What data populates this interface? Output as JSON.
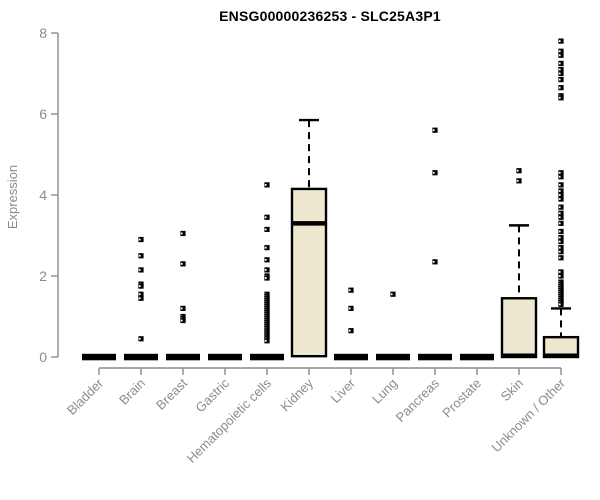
{
  "chart_data": {
    "type": "boxplot",
    "title": "ENSG00000236253 - SLC25A3P1",
    "ylabel": "Expression",
    "xlabel": "",
    "ylim": [
      0,
      8
    ],
    "yticks": [
      0,
      2,
      4,
      6,
      8
    ],
    "grid": false,
    "legend": "none",
    "colors": {
      "box_fill": "#EDE8CF",
      "box_border": "#000000",
      "median": "#000000",
      "whisker": "#000000",
      "outlier": "#000000",
      "axis": "#8c8c8c",
      "tick_label": "#8c8c8c",
      "title": "#000000",
      "background": "#ffffff"
    },
    "categories": [
      {
        "label": "Bladder",
        "q1": 0,
        "median": 0,
        "q3": 0,
        "whisker_low": 0,
        "whisker_high": 0,
        "outliers": []
      },
      {
        "label": "Brain",
        "q1": 0,
        "median": 0,
        "q3": 0,
        "whisker_low": 0,
        "whisker_high": 0,
        "outliers": [
          2.9,
          2.5,
          2.15,
          1.8,
          1.75,
          1.55,
          1.45,
          0.45
        ]
      },
      {
        "label": "Breast",
        "q1": 0,
        "median": 0,
        "q3": 0,
        "whisker_low": 0,
        "whisker_high": 0,
        "outliers": [
          3.05,
          2.3,
          1.2,
          1.0,
          0.95,
          0.9
        ]
      },
      {
        "label": "Gastric",
        "q1": 0,
        "median": 0,
        "q3": 0,
        "whisker_low": 0,
        "whisker_high": 0,
        "outliers": []
      },
      {
        "label": "Hematopoietic cells",
        "q1": 0,
        "median": 0,
        "q3": 0,
        "whisker_low": 0,
        "whisker_high": 0,
        "outliers": [
          4.25,
          3.45,
          3.15,
          2.7,
          2.4,
          2.15,
          2.0,
          1.95,
          1.55,
          1.5,
          1.45,
          1.4,
          1.35,
          1.3,
          1.25,
          1.2,
          1.15,
          1.1,
          1.05,
          1.0,
          0.95,
          0.9,
          0.85,
          0.8,
          0.75,
          0.7,
          0.65,
          0.6,
          0.55,
          0.5,
          0.45,
          0.4
        ]
      },
      {
        "label": "Kidney",
        "q1": 0.02,
        "median": 3.3,
        "q3": 4.15,
        "whisker_low": 0,
        "whisker_high": 5.85,
        "outliers": []
      },
      {
        "label": "Liver",
        "q1": 0,
        "median": 0,
        "q3": 0,
        "whisker_low": 0,
        "whisker_high": 0,
        "outliers": [
          1.65,
          1.2,
          0.65
        ]
      },
      {
        "label": "Lung",
        "q1": 0,
        "median": 0,
        "q3": 0,
        "whisker_low": 0,
        "whisker_high": 0,
        "outliers": [
          1.55
        ]
      },
      {
        "label": "Pancreas",
        "q1": 0,
        "median": 0,
        "q3": 0,
        "whisker_low": 0,
        "whisker_high": 0,
        "outliers": [
          5.6,
          4.55,
          2.35
        ]
      },
      {
        "label": "Prostate",
        "q1": 0,
        "median": 0,
        "q3": 0,
        "whisker_low": 0,
        "whisker_high": 0,
        "outliers": []
      },
      {
        "label": "Skin",
        "q1": 0,
        "median": 0.03,
        "q3": 1.45,
        "whisker_low": 0,
        "whisker_high": 3.25,
        "outliers": [
          4.6,
          4.35
        ]
      },
      {
        "label": "Unknown / Other",
        "q1": 0,
        "median": 0.03,
        "q3": 0.49,
        "whisker_low": 0,
        "whisker_high": 1.2,
        "outliers": [
          7.8,
          7.55,
          7.45,
          7.25,
          7.1,
          7.0,
          6.85,
          6.65,
          6.45,
          6.4,
          4.55,
          4.45,
          4.25,
          4.1,
          4.0,
          3.9,
          3.7,
          3.55,
          3.45,
          3.3,
          3.1,
          2.95,
          2.85,
          2.7,
          2.6,
          2.45,
          2.1,
          2.0,
          1.85,
          1.8,
          1.75,
          1.7,
          1.65,
          1.6,
          1.55,
          1.5,
          1.45,
          1.4,
          1.35,
          1.3
        ]
      }
    ]
  }
}
